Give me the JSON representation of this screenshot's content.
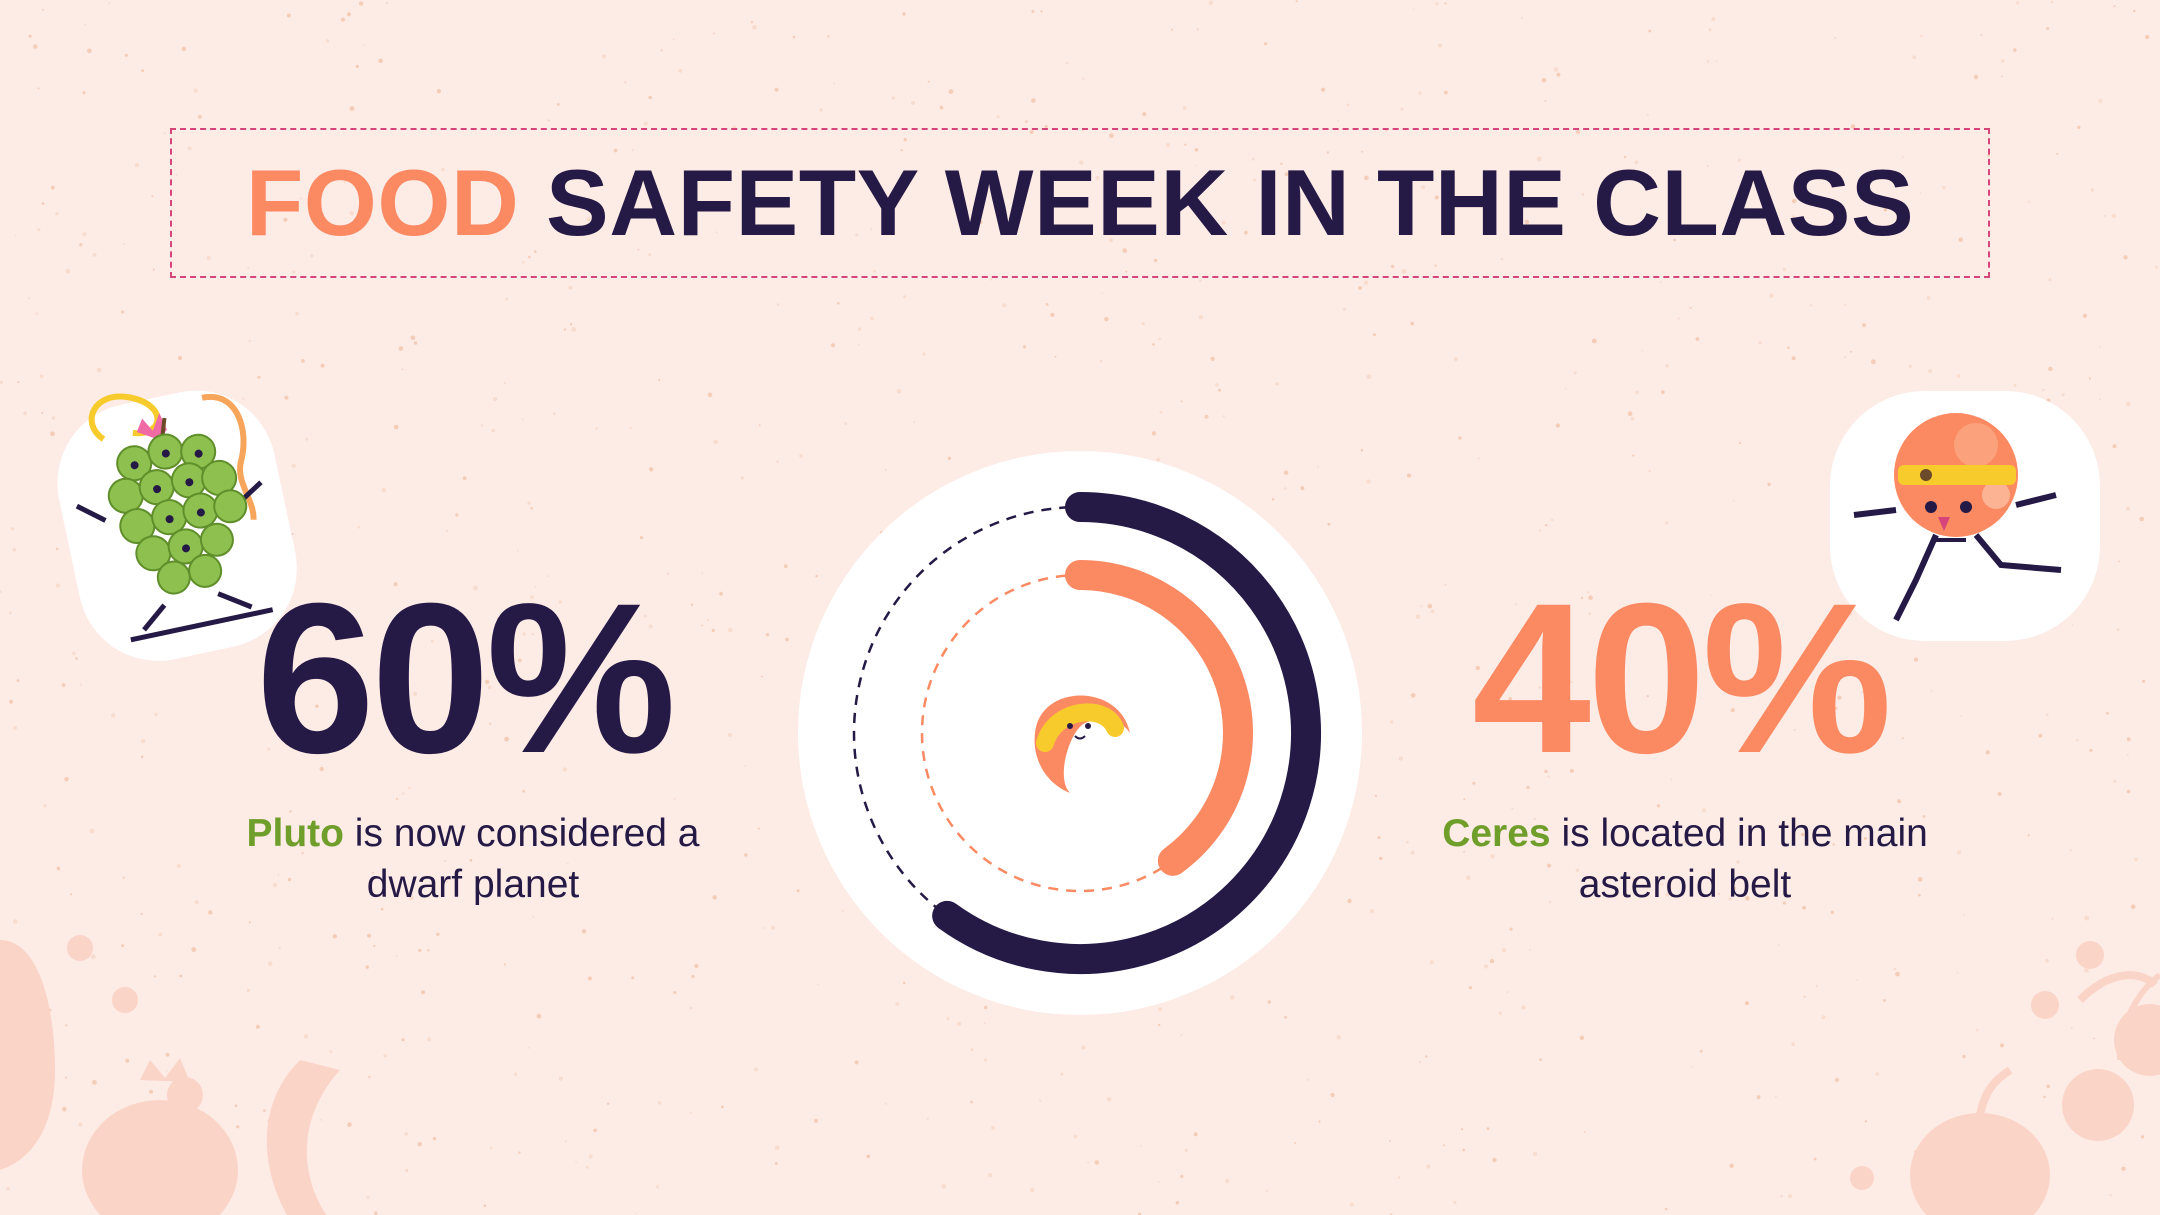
{
  "title": {
    "accent": "FOOD",
    "rest": "SAFETY WEEK IN THE CLASS"
  },
  "stats": [
    {
      "value": "60%",
      "highlight": "Pluto",
      "text": " is now considered a dwarf planet"
    },
    {
      "value": "40%",
      "highlight": "Ceres",
      "text": " is located in the main asteroid belt"
    }
  ],
  "chart_data": {
    "type": "donut",
    "series": [
      {
        "value": 60,
        "color": "#251945"
      },
      {
        "value": 40,
        "color": "#fb8a63"
      }
    ]
  },
  "colors": {
    "background": "#fdebe6",
    "navy": "#251945",
    "orange": "#fb8a63",
    "green": "#6f9e2a",
    "border": "#d6457a"
  },
  "icons": [
    "grape-sticker-icon",
    "peach-sticker-icon",
    "croissant-icon",
    "fruit-silhouette-icon"
  ]
}
